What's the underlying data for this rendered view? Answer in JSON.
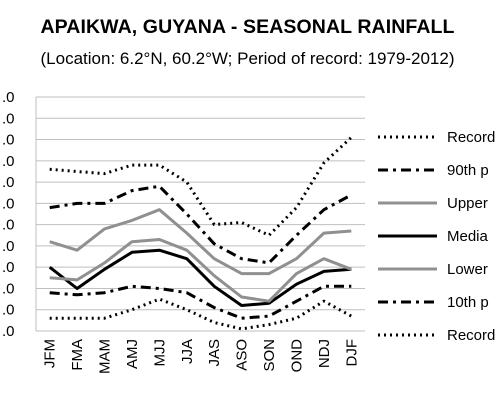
{
  "chart_data": {
    "type": "line",
    "title": "APAIKWA, GUYANA - SEASONAL RAINFALL",
    "subtitle": "(Location: 6.2°N, 60.2°W; Period of record: 1979-2012)",
    "xlabel": "",
    "ylabel": "",
    "categories": [
      "JFM",
      "FMA",
      "MAM",
      "AMJ",
      "MJJ",
      "JJA",
      "JAS",
      "ASO",
      "SON",
      "OND",
      "NDJ",
      "DJF"
    ],
    "y_tick_labels": [
      ".0",
      ".0",
      ".0",
      ".0",
      ".0",
      ".0",
      ".0",
      ".0",
      ".0",
      ".0",
      ".0",
      ".0"
    ],
    "ylim": [
      0,
      11
    ],
    "grid": true,
    "legend_position": "right",
    "series": [
      {
        "name": "Record",
        "style": "dotted",
        "color": "#000000",
        "values": [
          7.6,
          7.5,
          7.4,
          7.8,
          7.8,
          7.0,
          5.0,
          5.1,
          4.5,
          5.8,
          7.9,
          9.1
        ]
      },
      {
        "name": "90th p",
        "style": "dashdot",
        "color": "#000000",
        "values": [
          5.8,
          6.0,
          6.0,
          6.6,
          6.8,
          5.5,
          4.1,
          3.4,
          3.2,
          4.5,
          5.7,
          6.4
        ]
      },
      {
        "name": "Upper",
        "style": "solid",
        "color": "#909090",
        "values": [
          4.2,
          3.8,
          4.8,
          5.2,
          5.7,
          4.6,
          3.4,
          2.7,
          2.7,
          3.4,
          4.6,
          4.7
        ]
      },
      {
        "name": "Media",
        "style": "solid",
        "color": "#000000",
        "values": [
          3.0,
          2.0,
          2.9,
          3.7,
          3.8,
          3.4,
          2.1,
          1.2,
          1.3,
          2.2,
          2.8,
          2.9
        ]
      },
      {
        "name": "Lower",
        "style": "solid",
        "color": "#909090",
        "values": [
          2.5,
          2.4,
          3.2,
          4.2,
          4.3,
          3.8,
          2.6,
          1.6,
          1.4,
          2.7,
          3.4,
          2.9
        ]
      },
      {
        "name": "10th p",
        "style": "dashdot",
        "color": "#000000",
        "values": [
          1.8,
          1.7,
          1.8,
          2.1,
          2.0,
          1.8,
          1.1,
          0.6,
          0.7,
          1.4,
          2.1,
          2.1
        ]
      },
      {
        "name": "Record",
        "style": "dotted",
        "color": "#000000",
        "values": [
          0.6,
          0.6,
          0.6,
          1.0,
          1.5,
          1.0,
          0.4,
          0.1,
          0.3,
          0.6,
          1.4,
          0.7
        ]
      }
    ]
  }
}
